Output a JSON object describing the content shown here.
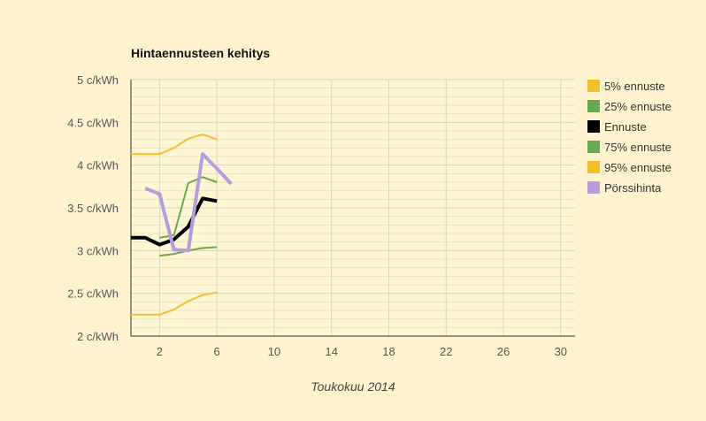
{
  "chart_data": {
    "type": "line",
    "title": "Hintaennusteen kehitys",
    "xlabel": "Toukokuu 2014",
    "ylabel": "",
    "xlim": [
      0,
      31
    ],
    "ylim": [
      2,
      5
    ],
    "x_ticks": [
      2,
      6,
      10,
      14,
      18,
      22,
      26,
      30
    ],
    "y_ticks": [
      {
        "value": 2,
        "label": "2 c/kWh"
      },
      {
        "value": 2.5,
        "label": "2.5 c/kWh"
      },
      {
        "value": 3,
        "label": "3 c/kWh"
      },
      {
        "value": 3.5,
        "label": "3.5 c/kWh"
      },
      {
        "value": 4,
        "label": "4 c/kWh"
      },
      {
        "value": 4.5,
        "label": "4.5 c/kWh"
      },
      {
        "value": 5,
        "label": "5 c/kWh"
      }
    ],
    "grid": true,
    "legend_position": "right",
    "series": [
      {
        "name": "5% ennuste",
        "color": "#f0c030",
        "width": 2,
        "x": [
          0,
          2,
          3,
          4,
          5,
          6
        ],
        "y": [
          2.25,
          2.25,
          2.31,
          2.41,
          2.48,
          2.51
        ]
      },
      {
        "name": "25% ennuste",
        "color": "#6aa84f",
        "width": 2,
        "x": [
          2,
          3,
          4,
          5,
          6
        ],
        "y": [
          2.94,
          2.96,
          3.0,
          3.03,
          3.04
        ]
      },
      {
        "name": "Ennuste",
        "color": "#000000",
        "width": 4,
        "x": [
          0,
          1,
          2,
          3,
          4,
          5,
          6
        ],
        "y": [
          3.15,
          3.15,
          3.07,
          3.13,
          3.28,
          3.61,
          3.58
        ]
      },
      {
        "name": "75% ennuste",
        "color": "#6aa84f",
        "width": 2,
        "x": [
          2,
          3,
          4,
          5,
          6
        ],
        "y": [
          3.15,
          3.18,
          3.79,
          3.86,
          3.8
        ]
      },
      {
        "name": "95% ennuste",
        "color": "#f0c030",
        "width": 2,
        "x": [
          0,
          2,
          3,
          4,
          5,
          6
        ],
        "y": [
          4.13,
          4.13,
          4.2,
          4.31,
          4.36,
          4.3
        ]
      },
      {
        "name": "Pörssihinta",
        "color": "#b39ddb",
        "width": 4,
        "x": [
          1,
          2,
          3,
          4,
          5,
          6,
          7
        ],
        "y": [
          3.73,
          3.66,
          3.01,
          3.0,
          4.13,
          3.96,
          3.78
        ]
      }
    ]
  }
}
